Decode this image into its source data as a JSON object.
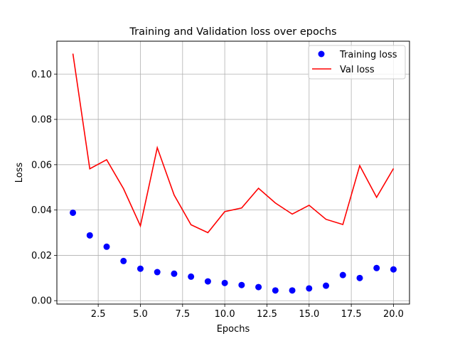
{
  "chart_data": {
    "type": "line",
    "title": "Training and Validation loss over epochs",
    "xlabel": "Epochs",
    "ylabel": "Loss",
    "xlim": [
      0.05,
      20.95
    ],
    "ylim": [
      -0.0015,
      0.1145
    ],
    "xticks": [
      2.5,
      5.0,
      7.5,
      10.0,
      12.5,
      15.0,
      17.5,
      20.0
    ],
    "xtick_labels": [
      "2.5",
      "5.0",
      "7.5",
      "10.0",
      "12.5",
      "15.0",
      "17.5",
      "20.0"
    ],
    "yticks": [
      0.0,
      0.02,
      0.04,
      0.06,
      0.08,
      0.1
    ],
    "ytick_labels": [
      "0.00",
      "0.02",
      "0.04",
      "0.06",
      "0.08",
      "0.10"
    ],
    "grid": true,
    "legend_position": "top-right",
    "x": [
      1,
      2,
      3,
      4,
      5,
      6,
      7,
      8,
      9,
      10,
      11,
      12,
      13,
      14,
      15,
      16,
      17,
      18,
      19,
      20
    ],
    "series": [
      {
        "name": "Training loss",
        "style": "markers",
        "color": "#0000ff",
        "values": [
          0.0388,
          0.0288,
          0.0238,
          0.0175,
          0.0141,
          0.0126,
          0.0119,
          0.0106,
          0.0085,
          0.0078,
          0.0069,
          0.006,
          0.0045,
          0.0045,
          0.0054,
          0.0066,
          0.0113,
          0.01,
          0.0144,
          0.0138
        ]
      },
      {
        "name": "Val loss",
        "style": "line",
        "color": "#ff0000",
        "values": [
          0.109,
          0.0582,
          0.0622,
          0.0494,
          0.033,
          0.0675,
          0.0466,
          0.0335,
          0.03,
          0.0393,
          0.0409,
          0.0496,
          0.0431,
          0.0382,
          0.0421,
          0.0359,
          0.0336,
          0.0596,
          0.0456,
          0.0583
        ]
      }
    ]
  }
}
